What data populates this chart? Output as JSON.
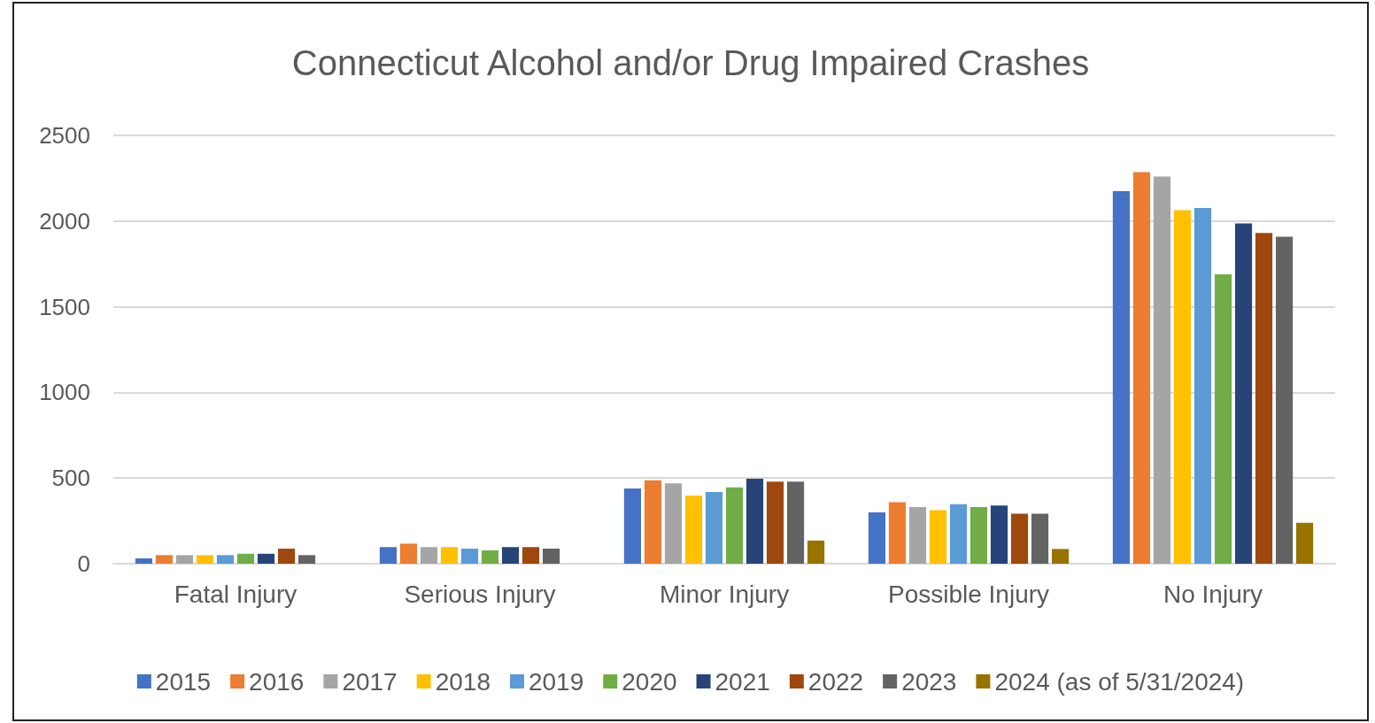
{
  "chart_data": {
    "type": "bar",
    "title": "Connecticut Alcohol and/or Drug Impaired Crashes",
    "categories": [
      "Fatal Injury",
      "Serious Injury",
      "Minor Injury",
      "Possible Injury",
      "No Injury"
    ],
    "series": [
      {
        "name": "2015",
        "color": "#4472c4",
        "values": [
          31,
          97,
          439,
          299,
          2175
        ]
      },
      {
        "name": "2016",
        "color": "#ed7d31",
        "values": [
          50,
          117,
          487,
          359,
          2286
        ]
      },
      {
        "name": "2017",
        "color": "#a5a5a5",
        "values": [
          50,
          97,
          469,
          330,
          2260
        ]
      },
      {
        "name": "2018",
        "color": "#ffc000",
        "values": [
          50,
          97,
          398,
          312,
          2063
        ]
      },
      {
        "name": "2019",
        "color": "#5b9bd5",
        "values": [
          50,
          88,
          419,
          348,
          2077
        ]
      },
      {
        "name": "2020",
        "color": "#70ad47",
        "values": [
          58,
          78,
          446,
          330,
          1689
        ]
      },
      {
        "name": "2021",
        "color": "#264478",
        "values": [
          58,
          97,
          496,
          339,
          1986
        ]
      },
      {
        "name": "2022",
        "color": "#9e480e",
        "values": [
          88,
          97,
          479,
          292,
          1931
        ]
      },
      {
        "name": "2023",
        "color": "#636363",
        "values": [
          50,
          88,
          479,
          292,
          1909
        ]
      },
      {
        "name": "2024 (as of 5/31/2024)",
        "color": "#997300",
        "values": [
          null,
          null,
          135,
          86,
          239
        ]
      }
    ],
    "ylim": [
      0,
      2500
    ],
    "yticks": [
      0,
      500,
      1000,
      1500,
      2000,
      2500
    ],
    "grid": "y",
    "legend": "bottom"
  }
}
